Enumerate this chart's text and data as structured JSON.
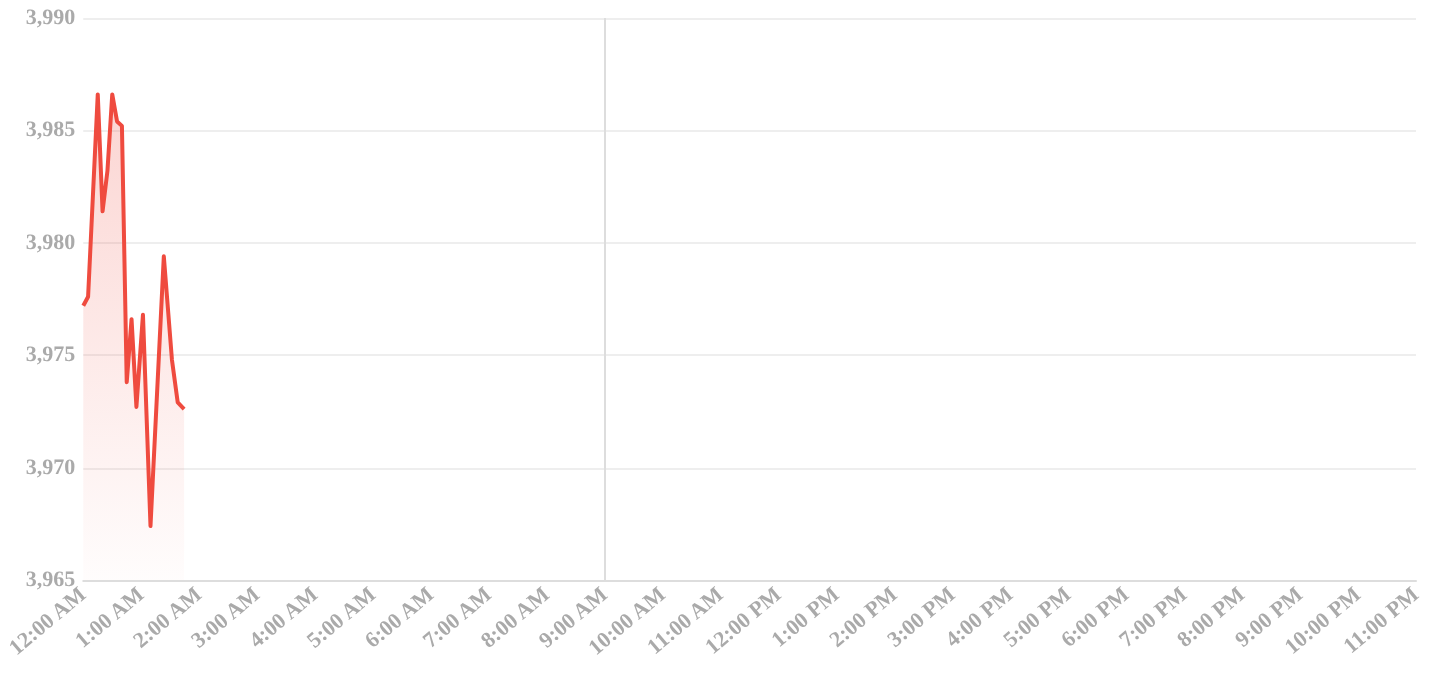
{
  "chart_data": {
    "type": "area",
    "x": [
      0,
      0.083,
      0.25,
      0.333,
      0.417,
      0.5,
      0.583,
      0.667,
      0.75,
      0.833,
      0.917,
      1.03,
      1.16,
      1.39,
      1.53,
      1.63,
      1.74
    ],
    "values": [
      3977.2,
      3977.6,
      3986.6,
      3981.4,
      3983.2,
      3986.6,
      3985.4,
      3985.2,
      3973.8,
      3976.6,
      3972.7,
      3976.8,
      3967.4,
      3979.4,
      3974.8,
      3972.9,
      3972.6
    ],
    "color": "#ef4b3f",
    "xlim": [
      0,
      23
    ],
    "xticks": [
      {
        "value": 0,
        "label": "12:00 AM"
      },
      {
        "value": 1,
        "label": "1:00 AM"
      },
      {
        "value": 2,
        "label": "2:00 AM"
      },
      {
        "value": 3,
        "label": "3:00 AM"
      },
      {
        "value": 4,
        "label": "4:00 AM"
      },
      {
        "value": 5,
        "label": "5:00 AM"
      },
      {
        "value": 6,
        "label": "6:00 AM"
      },
      {
        "value": 7,
        "label": "7:00 AM"
      },
      {
        "value": 8,
        "label": "8:00 AM"
      },
      {
        "value": 9,
        "label": "9:00 AM"
      },
      {
        "value": 10,
        "label": "10:00 AM"
      },
      {
        "value": 11,
        "label": "11:00 AM"
      },
      {
        "value": 12,
        "label": "12:00 PM"
      },
      {
        "value": 13,
        "label": "1:00 PM"
      },
      {
        "value": 14,
        "label": "2:00 PM"
      },
      {
        "value": 15,
        "label": "3:00 PM"
      },
      {
        "value": 16,
        "label": "4:00 PM"
      },
      {
        "value": 17,
        "label": "5:00 PM"
      },
      {
        "value": 18,
        "label": "6:00 PM"
      },
      {
        "value": 19,
        "label": "7:00 PM"
      },
      {
        "value": 20,
        "label": "8:00 PM"
      },
      {
        "value": 21,
        "label": "9:00 PM"
      },
      {
        "value": 22,
        "label": "10:00 PM"
      },
      {
        "value": 23,
        "label": "11:00 PM"
      }
    ],
    "ylim": [
      3965,
      3990
    ],
    "yticks": [
      {
        "value": 3965,
        "label": "3,965"
      },
      {
        "value": 3970,
        "label": "3,970"
      },
      {
        "value": 3975,
        "label": "3,975"
      },
      {
        "value": 3980,
        "label": "3,980"
      },
      {
        "value": 3985,
        "label": "3,985"
      },
      {
        "value": 3990,
        "label": "3,990"
      }
    ],
    "grid": "y",
    "marker": "none",
    "line_style": "solid",
    "ref_lines": [
      {
        "axis": "x",
        "value": 9,
        "color": "#dddddd"
      }
    ]
  }
}
